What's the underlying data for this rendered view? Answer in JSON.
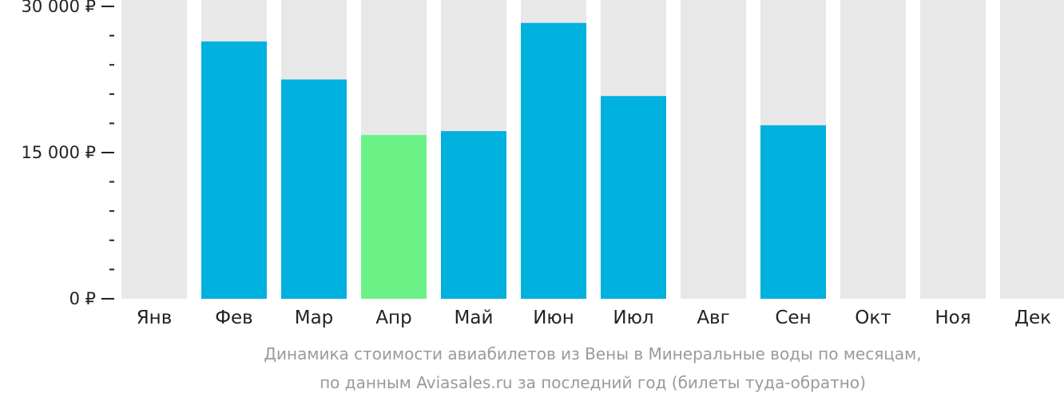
{
  "chart_data": {
    "type": "bar",
    "categories": [
      "Янв",
      "Фев",
      "Мар",
      "Апр",
      "Май",
      "Июн",
      "Июл",
      "Авг",
      "Сен",
      "Окт",
      "Ноя",
      "Дек"
    ],
    "values": [
      null,
      26400,
      22500,
      16800,
      17200,
      28300,
      20800,
      null,
      17800,
      null,
      null,
      null
    ],
    "highlight_index": 3,
    "ylim": [
      0,
      30000
    ],
    "yticks": [
      {
        "value": 0,
        "label": "0 ₽"
      },
      {
        "value": 15000,
        "label": "15 000 ₽"
      },
      {
        "value": 30000,
        "label": "30 000 ₽"
      }
    ],
    "minor_tick_step": 3000,
    "caption_lines": [
      "Динамика стоимости авиабилетов из Вены в Минеральные воды по месяцам,",
      "по данным Aviasales.ru за последний год (билеты туда-обратно)"
    ]
  },
  "colors": {
    "bar": "#00b0dd",
    "highlight": "#6bf286",
    "background_bar": "#e8e8e8",
    "axis_tick": "#222222",
    "caption": "#9a9a9a"
  }
}
